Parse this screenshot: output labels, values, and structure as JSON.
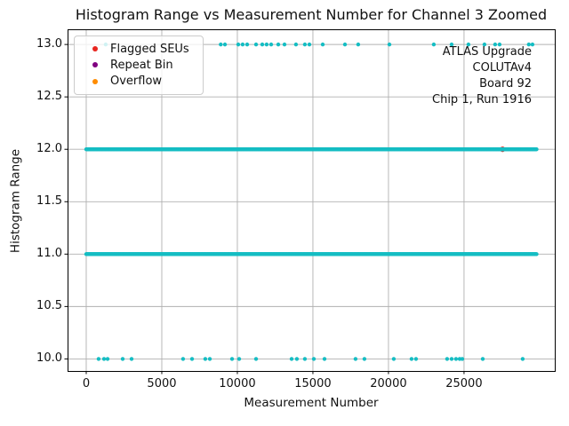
{
  "title": "Histogram Range vs Measurement Number for Channel 3 Zoomed",
  "axes": {
    "xlabel": "Measurement Number",
    "ylabel": "Histogram Range"
  },
  "legend": {
    "items": [
      {
        "label": "Flagged SEUs",
        "color": "#e8251f"
      },
      {
        "label": "Repeat Bin",
        "color": "#800080"
      },
      {
        "label": "Overflow",
        "color": "#ff8c00"
      }
    ]
  },
  "annotation": {
    "lines": [
      "ATLAS Upgrade",
      "COLUTAv4",
      "Board 92",
      "Chip 1, Run 1916"
    ]
  },
  "chart_data": {
    "type": "scatter",
    "title": "Histogram Range vs Measurement Number for Channel 3 Zoomed",
    "xlabel": "Measurement Number",
    "ylabel": "Histogram Range",
    "xlim": [
      -1235,
      31005
    ],
    "ylim": [
      9.885,
      13.145
    ],
    "grid": true,
    "legend_position": "upper left",
    "legend_entries": [
      "Flagged SEUs",
      "Repeat Bin",
      "Overflow"
    ],
    "x_ticks": {
      "values": [
        0,
        5000,
        10000,
        15000,
        20000,
        25000
      ],
      "labels": [
        "0",
        "5000",
        "10000",
        "15000",
        "20000",
        "25000"
      ]
    },
    "y_ticks": {
      "values": [
        10,
        10.5,
        11,
        11.5,
        12,
        12.5,
        13
      ],
      "labels": [
        "10.0",
        "10.5",
        "11.0",
        "11.5",
        "12.0",
        "12.5",
        "13.0"
      ]
    },
    "point_color": "#15bdc3",
    "grid_color": "#b0b0b0",
    "series": [
      {
        "name": "histogram-range-band-12",
        "type": "dense_band",
        "y": 12,
        "x_start": 0,
        "x_end": 29800,
        "x_step": 40
      },
      {
        "name": "histogram-range-band-11",
        "type": "dense_band",
        "y": 11,
        "x_start": 0,
        "x_end": 29800,
        "x_step": 40
      },
      {
        "name": "histogram-range-13",
        "type": "points",
        "y": 13,
        "x": [
          1290,
          8900,
          9180,
          10060,
          10350,
          10650,
          11240,
          11650,
          11940,
          12240,
          12710,
          13120,
          13880,
          14470,
          14770,
          15650,
          17120,
          18000,
          20060,
          23000,
          24180,
          25290,
          26350,
          27060,
          27350,
          29290,
          29530
        ]
      },
      {
        "name": "histogram-range-10",
        "type": "points",
        "y": 10,
        "x": [
          820,
          1180,
          1410,
          2410,
          3000,
          6410,
          7000,
          7880,
          8180,
          9650,
          10120,
          11240,
          13590,
          13940,
          14470,
          15060,
          15770,
          17820,
          18410,
          20350,
          21530,
          21820,
          23880,
          24180,
          24470,
          24710,
          24880,
          26240,
          28880
        ]
      }
    ],
    "flagged_points": [
      {
        "name": "flagged-seu-under-band",
        "y": 12,
        "x": [
          27550
        ],
        "color": "#e8251f",
        "note": "mostly hidden beneath teal band"
      }
    ]
  }
}
